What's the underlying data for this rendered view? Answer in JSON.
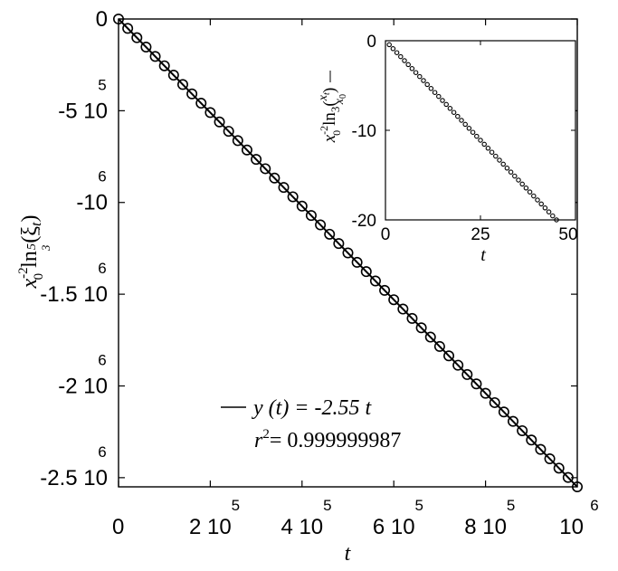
{
  "chart_data": [
    {
      "type": "scatter",
      "panel": "main",
      "xlabel": "t",
      "ylabel": {
        "base": "x",
        "base_sub": "0",
        "base_sup": "-2",
        "func": "ln",
        "func_sub_num": "5",
        "func_sub_den": "3",
        "arg": "(ξ",
        "arg_sub": "t",
        "arg_close": ")"
      },
      "xlim": [
        0,
        1000000
      ],
      "ylim": [
        -2550000,
        0
      ],
      "x_ticks": [
        {
          "value": 0,
          "mantissa": "0",
          "exponent": ""
        },
        {
          "value": 200000,
          "mantissa": "2 10",
          "exponent": "5"
        },
        {
          "value": 400000,
          "mantissa": "4 10",
          "exponent": "5"
        },
        {
          "value": 600000,
          "mantissa": "6 10",
          "exponent": "5"
        },
        {
          "value": 800000,
          "mantissa": "8 10",
          "exponent": "5"
        },
        {
          "value": 1000000,
          "mantissa": "10",
          "exponent": "6"
        }
      ],
      "y_ticks": [
        {
          "value": 0,
          "mantissa": "0",
          "exponent": ""
        },
        {
          "value": -500000,
          "mantissa": "-5 10",
          "exponent": "5"
        },
        {
          "value": -1000000,
          "mantissa": "-10",
          "exponent": "6"
        },
        {
          "value": -1500000,
          "mantissa": "-1.5 10",
          "exponent": "6"
        },
        {
          "value": -2000000,
          "mantissa": "-2 10",
          "exponent": "6"
        },
        {
          "value": -2500000,
          "mantissa": "-2.5 10",
          "exponent": "6"
        }
      ],
      "series": [
        {
          "marker": "open-circle",
          "x_start": 0,
          "x_step": 20000,
          "count": 51,
          "y_formula_slope": -2.55
        },
        {
          "name": "y (t) = -2.55 t",
          "type": "line",
          "x": [
            0,
            1000000
          ],
          "y": [
            0,
            -2550000
          ]
        }
      ],
      "legend": {
        "fit_label": "y (t) = -2.55 t",
        "r2_label": "r",
        "r2_sup": "2",
        "r2_value": "= 0.999999987",
        "position": "bottom-center"
      }
    },
    {
      "type": "scatter",
      "panel": "inset",
      "xlabel": "t",
      "ylabel": {
        "base": "x",
        "base_sub": "0",
        "base_sup": "-2",
        "func": "ln",
        "func_sub": "3",
        "arg_open": "(",
        "num": "x",
        "num_sub": "t",
        "den": "x",
        "den_sub": "0",
        "arg_close": ")"
      },
      "xlim": [
        0,
        50
      ],
      "ylim": [
        -20,
        0
      ],
      "x_ticks": [
        "0",
        "25",
        "50"
      ],
      "y_ticks": [
        "0",
        "-10",
        "-20"
      ],
      "series": [
        {
          "marker": "small-open-circle",
          "x": [
            1,
            2,
            3,
            4,
            5,
            6,
            7,
            8,
            9,
            10,
            11,
            12,
            13,
            14,
            15,
            16,
            17,
            18,
            19,
            20,
            21,
            22,
            23,
            24,
            25,
            26,
            27,
            28,
            29,
            30,
            31,
            32,
            33,
            34,
            35,
            36,
            37,
            38,
            39,
            40,
            41,
            42,
            43,
            44,
            45
          ],
          "slope": -0.4444
        }
      ]
    }
  ]
}
